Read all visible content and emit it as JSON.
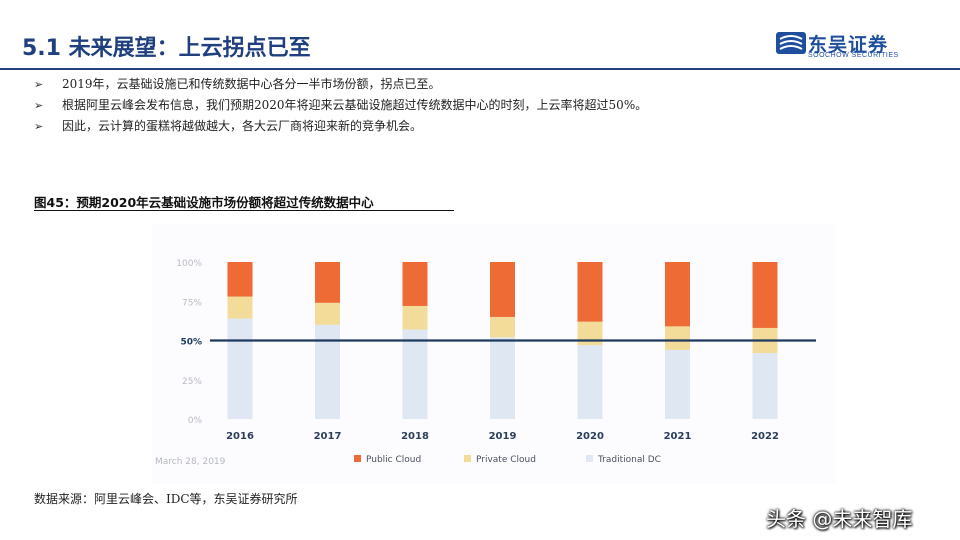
{
  "header": {
    "title": "5.1 未来展望：上云拐点已至",
    "logo_name": "东吴证券",
    "logo_en": "SOOCHOW SECURITIES"
  },
  "bullets": [
    "2019年，云基础设施已和传统数据中心各分一半市场份额，拐点已至。",
    "根据阿里云峰会发布信息，我们预期2020年将迎来云基础设施超过传统数据中心的时刻，上云率将超过50%。",
    "因此，云计算的蛋糕将越做越大，各大云厂商将迎来新的竞争机会。"
  ],
  "bullet_marker": "➢",
  "figure_title": "图45：预期2020年云基础设施市场份额将超过传统数据中心",
  "source": "数据来源：阿里云峰会、IDC等，东吴证券研究所",
  "watermark": "头条 @未来智库",
  "colors": {
    "brand": "#1f3f7f",
    "public_cloud": "#ee6b35",
    "private_cloud": "#f3dc9a",
    "traditional_dc": "#dfe7f3",
    "reference_line": "#1f3a5f"
  },
  "chart_data": {
    "type": "bar",
    "stacked": true,
    "categories": [
      "2016",
      "2017",
      "2018",
      "2019",
      "2020",
      "2021",
      "2022"
    ],
    "series": [
      {
        "name": "Traditional DC",
        "values": [
          64,
          60,
          57,
          52,
          47,
          44,
          42
        ]
      },
      {
        "name": "Private Cloud",
        "values": [
          14,
          14,
          15,
          13,
          15,
          15,
          16
        ]
      },
      {
        "name": "Public Cloud",
        "values": [
          22,
          26,
          28,
          35,
          38,
          41,
          42
        ]
      }
    ],
    "y_ticks": [
      "0%",
      "25%",
      "50%",
      "75%",
      "100%"
    ],
    "ylim": [
      0,
      100
    ],
    "reference_line": 50,
    "date_note": "March 28, 2019",
    "legend": [
      "Public Cloud",
      "Private Cloud",
      "Traditional DC"
    ],
    "legend_position": "bottom"
  }
}
